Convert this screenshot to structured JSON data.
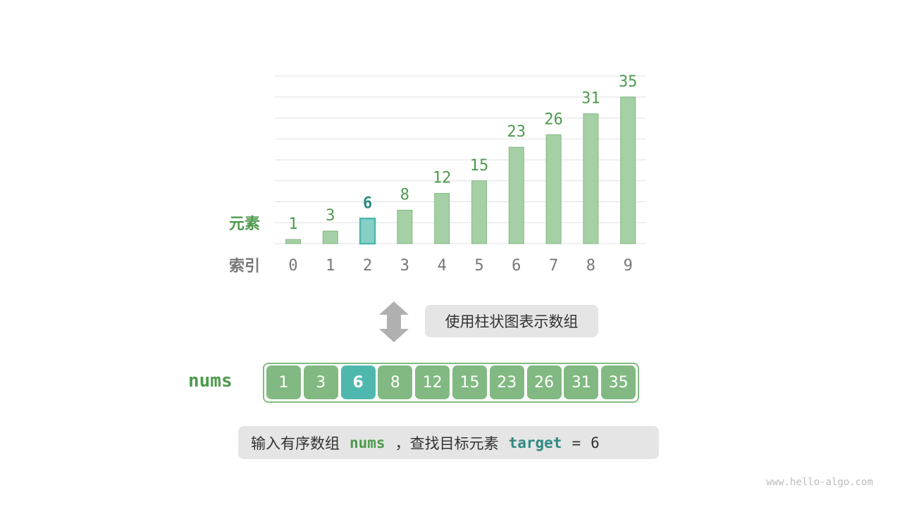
{
  "chart_data": {
    "type": "bar",
    "categories": [
      "0",
      "1",
      "2",
      "3",
      "4",
      "5",
      "6",
      "7",
      "8",
      "9"
    ],
    "values": [
      1,
      3,
      6,
      8,
      12,
      15,
      23,
      26,
      31,
      35
    ],
    "highlight_index": 2,
    "ylim": [
      0,
      40
    ],
    "grid": true,
    "row_labels": {
      "value": "元素",
      "index": "索引"
    },
    "colors": {
      "bar": "#a5cfa5",
      "bar_border": "#82b982",
      "highlight": "#86cfc5",
      "highlight_border": "#4fb8ae",
      "value_text": "#4e9a4e",
      "highlight_text": "#2e8a82",
      "index_text": "#777777"
    }
  },
  "arrow_icon": "up-down-arrow",
  "caption": "使用柱状图表示数组",
  "array": {
    "name": "nums",
    "values": [
      "1",
      "3",
      "6",
      "8",
      "12",
      "15",
      "23",
      "26",
      "31",
      "35"
    ],
    "highlight_index": 2
  },
  "prompt": {
    "prefix": "输入有序数组",
    "nums": "nums",
    "middle": "，查找目标元素",
    "target": "target",
    "equals": "=",
    "value": "6"
  },
  "watermark": "www.hello-algo.com"
}
